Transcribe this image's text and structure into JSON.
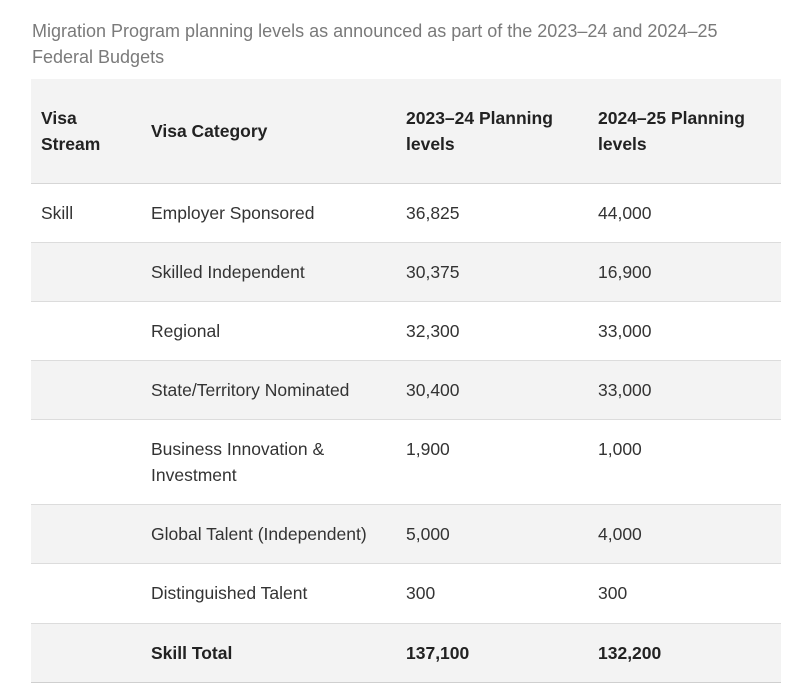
{
  "caption": "Migration Program planning levels as announced as part of the 2023–24 and 2024–25 Federal Budgets",
  "table": {
    "headers": [
      "Visa Stream",
      "Visa Category",
      "2023–24 Planning levels",
      "2024–25 Planning levels"
    ],
    "rows": [
      {
        "stream": "Skill",
        "category": "Employer Sponsored",
        "y2023": "36,825",
        "y2024": "44,000"
      },
      {
        "stream": "",
        "category": "Skilled Independent",
        "y2023": "30,375",
        "y2024": "16,900"
      },
      {
        "stream": "",
        "category": "Regional",
        "y2023": "32,300",
        "y2024": "33,000"
      },
      {
        "stream": "",
        "category": "State/Territory Nominated",
        "y2023": "30,400",
        "y2024": "33,000"
      },
      {
        "stream": "",
        "category": "Business Innovation & Investment",
        "y2023": "1,900",
        "y2024": "1,000"
      },
      {
        "stream": "",
        "category": "Global Talent (Independent)",
        "y2023": "5,000",
        "y2024": "4,000"
      },
      {
        "stream": "",
        "category": "Distinguished Talent",
        "y2023": "300",
        "y2024": "300"
      }
    ],
    "total": {
      "stream": "",
      "category": "Skill Total",
      "y2023": "137,100",
      "y2024": "132,200"
    }
  }
}
